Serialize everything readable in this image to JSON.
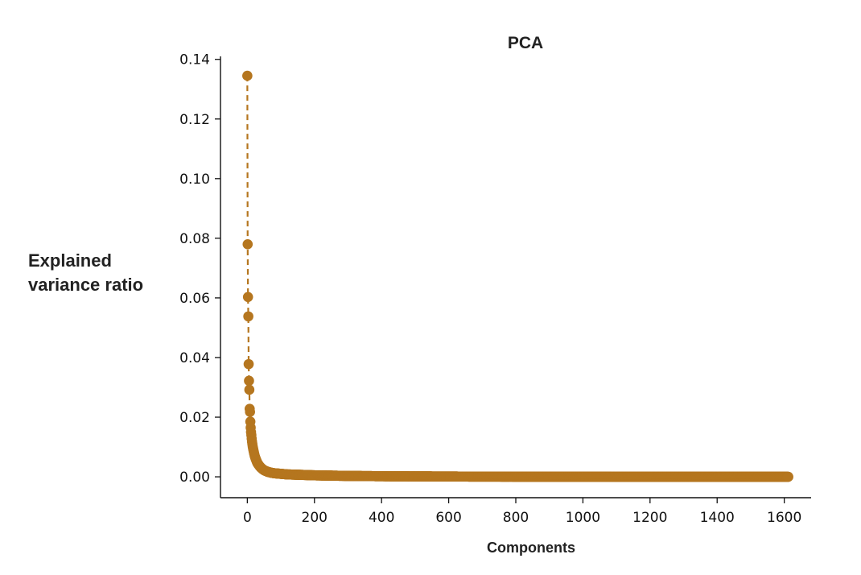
{
  "chart_data": {
    "type": "line",
    "title": "PCA",
    "xlabel": "Components",
    "ylabel": [
      "Explained",
      "variance ratio"
    ],
    "xlim": [
      -80,
      1680
    ],
    "ylim": [
      -0.007,
      0.141
    ],
    "xticks": [
      0,
      200,
      400,
      600,
      800,
      1000,
      1200,
      1400,
      1600
    ],
    "xtick_labels": [
      "0",
      "200",
      "400",
      "600",
      "800",
      "1000",
      "1200",
      "1400",
      "1600"
    ],
    "yticks": [
      0.0,
      0.02,
      0.04,
      0.06,
      0.08,
      0.1,
      0.12,
      0.14
    ],
    "ytick_labels": [
      "0.00",
      "0.02",
      "0.04",
      "0.06",
      "0.08",
      "0.10",
      "0.12",
      "0.14"
    ],
    "grid": false,
    "color": "#b5761f",
    "line_style": "dashed",
    "marker": "circle",
    "n_components": 1613,
    "series": [
      {
        "x": [
          0,
          1,
          2,
          3,
          4,
          5,
          6,
          7,
          8,
          9,
          10,
          11,
          12,
          13,
          14,
          15,
          16,
          18,
          20,
          22,
          25,
          28,
          30,
          35,
          40,
          45,
          50,
          60,
          70,
          80,
          100,
          120,
          150,
          200,
          250,
          300,
          400,
          500,
          600,
          800,
          1000,
          1200,
          1400,
          1612
        ],
        "y": [
          0.1345,
          0.078,
          0.0603,
          0.0538,
          0.0378,
          0.0322,
          0.0292,
          0.0228,
          0.0218,
          0.0185,
          0.0165,
          0.015,
          0.014,
          0.0128,
          0.0118,
          0.011,
          0.0102,
          0.009,
          0.008,
          0.007,
          0.006,
          0.0052,
          0.0046,
          0.0038,
          0.0031,
          0.0026,
          0.0022,
          0.0017,
          0.0014,
          0.0012,
          0.001,
          0.0008,
          0.0007,
          0.0005,
          0.0004,
          0.0003,
          0.0002,
          0.00015,
          0.0001,
          5e-05,
          3e-05,
          2e-05,
          1e-05,
          0.0
        ]
      }
    ]
  }
}
